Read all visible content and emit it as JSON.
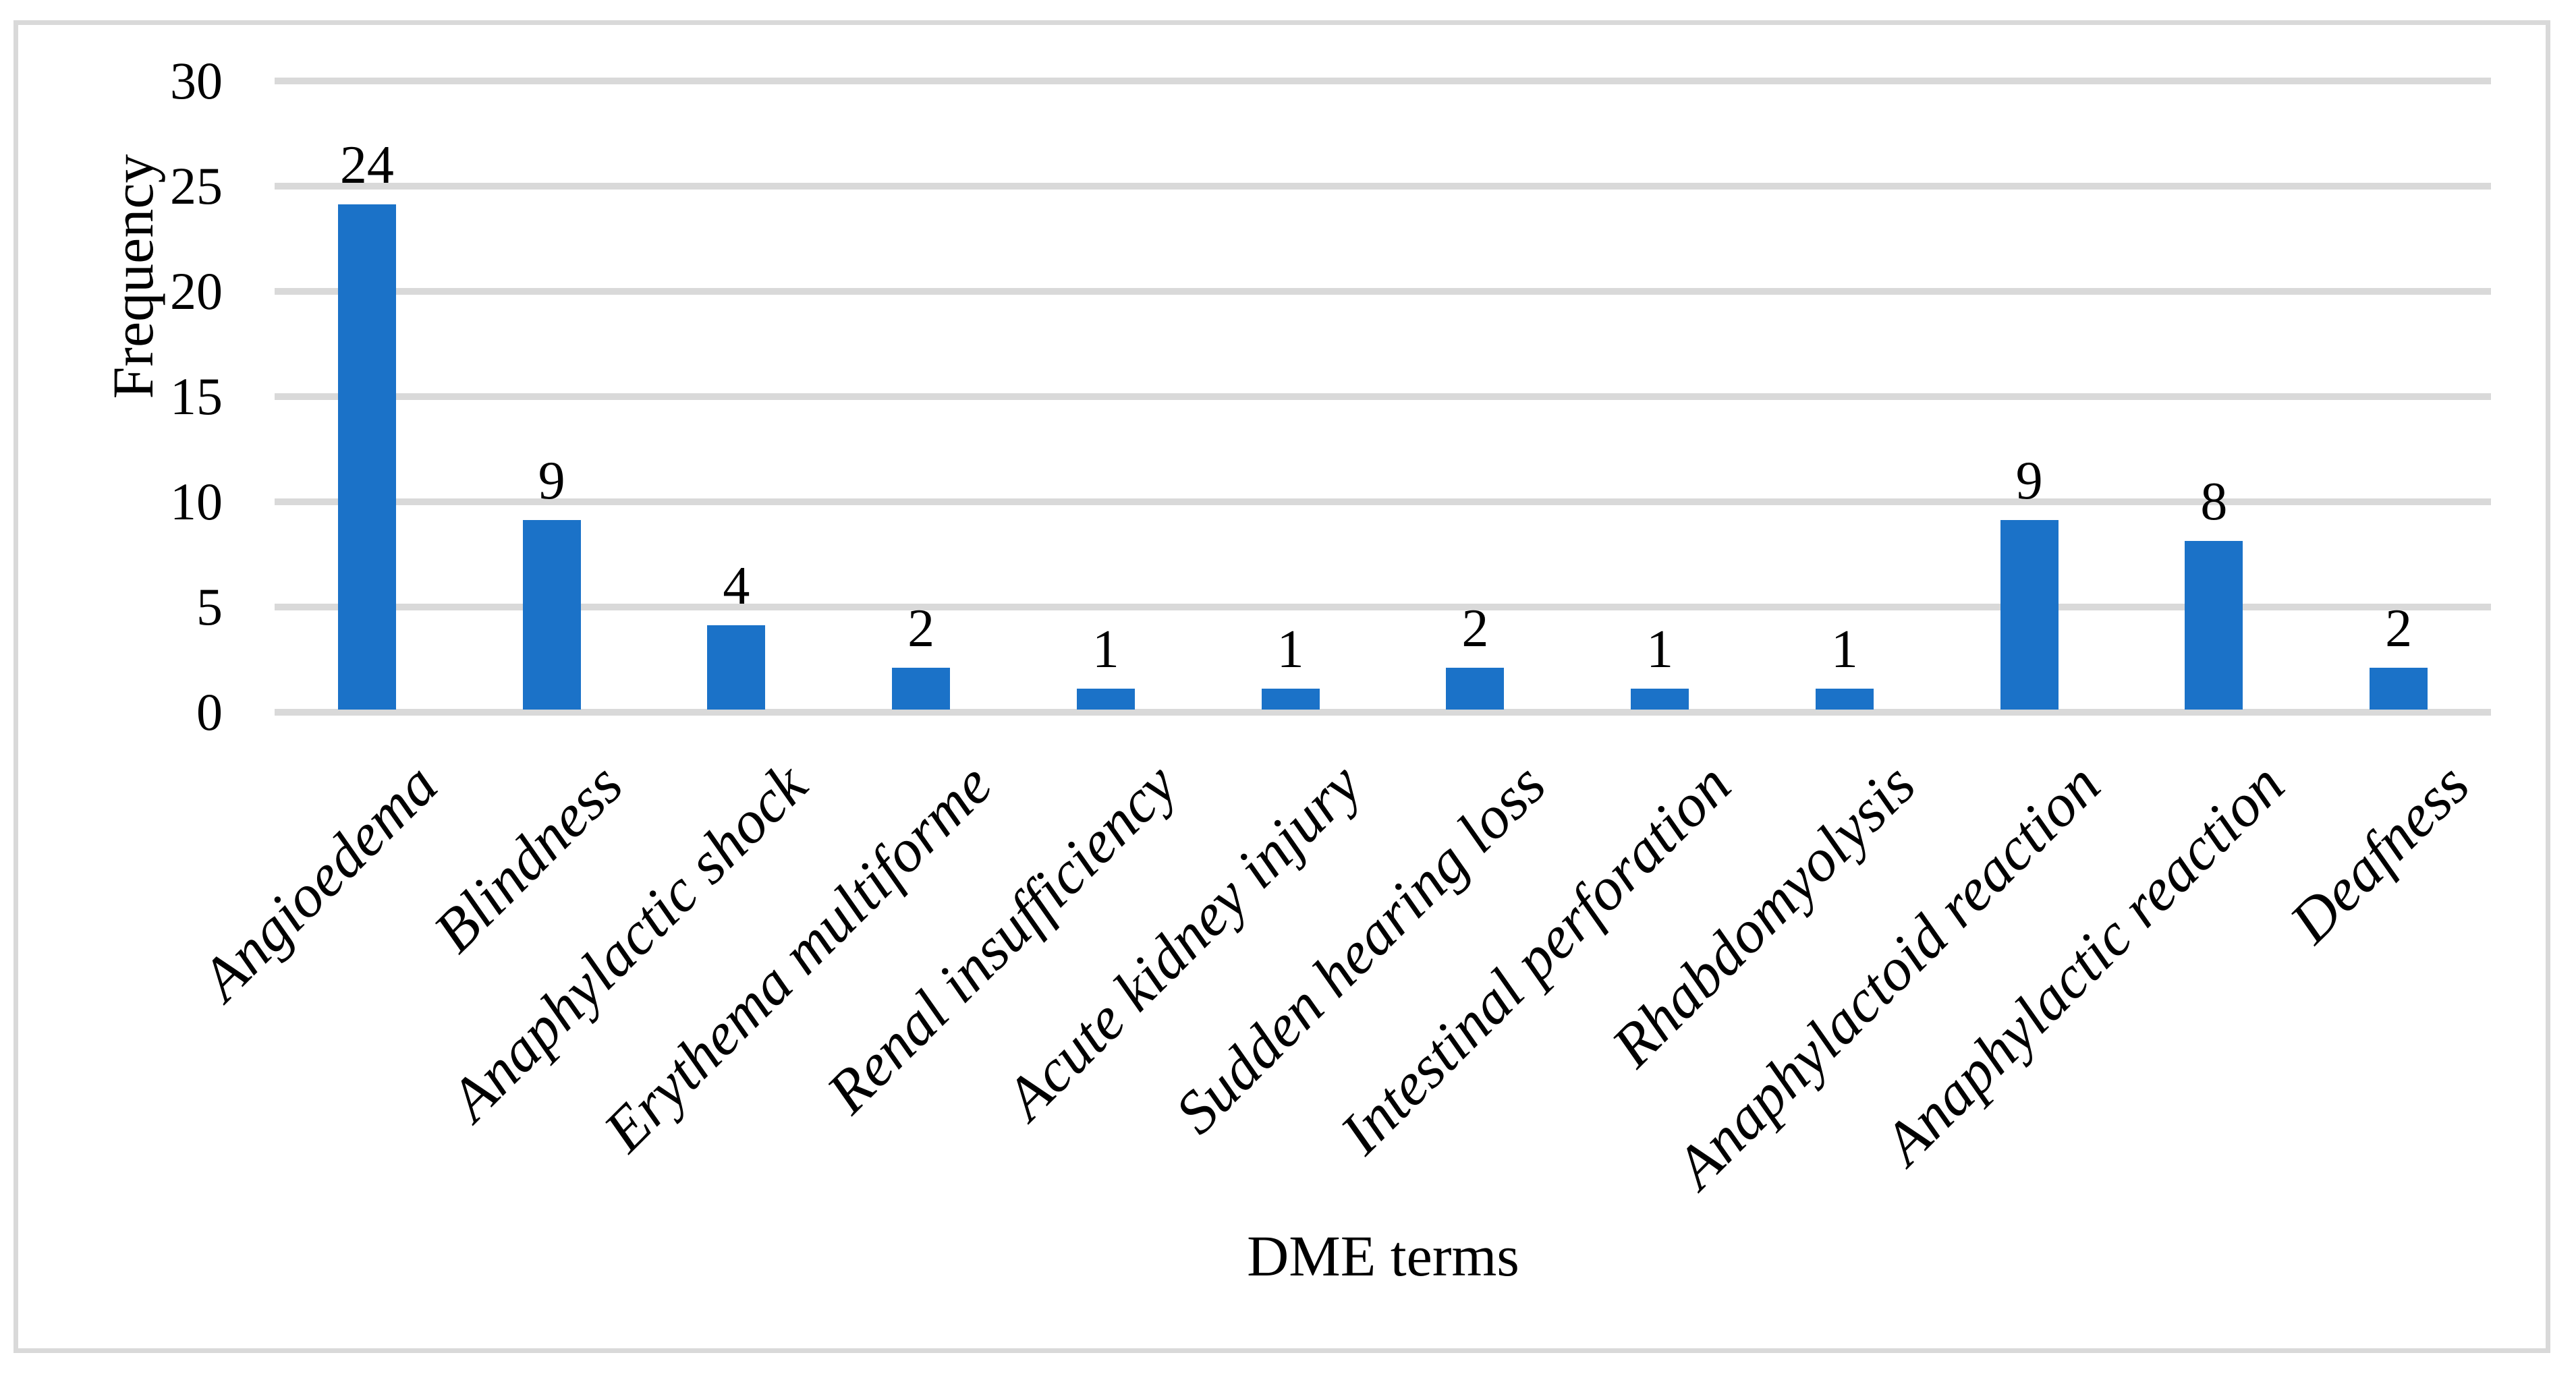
{
  "figure": {
    "background_color": "#ffffff",
    "frame_color": "#d9d9d9"
  },
  "chart_data": {
    "type": "bar",
    "title": "",
    "categories": [
      "Angioedema",
      "Blindness",
      "Anaphylactic shock",
      "Erythema multiforme",
      "Renal insufficiency",
      "Acute kidney injury",
      "Sudden hearing loss",
      "Intestinal perforation",
      "Rhabdomyolysis",
      "Anaphylactoid reaction",
      "Anaphylactic reaction",
      "Deafness"
    ],
    "values": [
      24,
      9,
      4,
      2,
      1,
      1,
      2,
      1,
      1,
      9,
      8,
      2
    ],
    "data_labels": [
      "24",
      "9",
      "4",
      "2",
      "1",
      "1",
      "2",
      "1",
      "1",
      "9",
      "8",
      "2"
    ],
    "xlabel": "DME terms",
    "ylabel": "Frequency",
    "ylim": [
      0,
      30
    ],
    "yticks": [
      0,
      5,
      10,
      15,
      20,
      25,
      30
    ],
    "grid": true,
    "legend_position": "none",
    "bar_color": "#1b72c8",
    "gridline_color": "#d9d9d9",
    "axis_line_color": "#d9d9d9",
    "text_color": "#000000"
  }
}
